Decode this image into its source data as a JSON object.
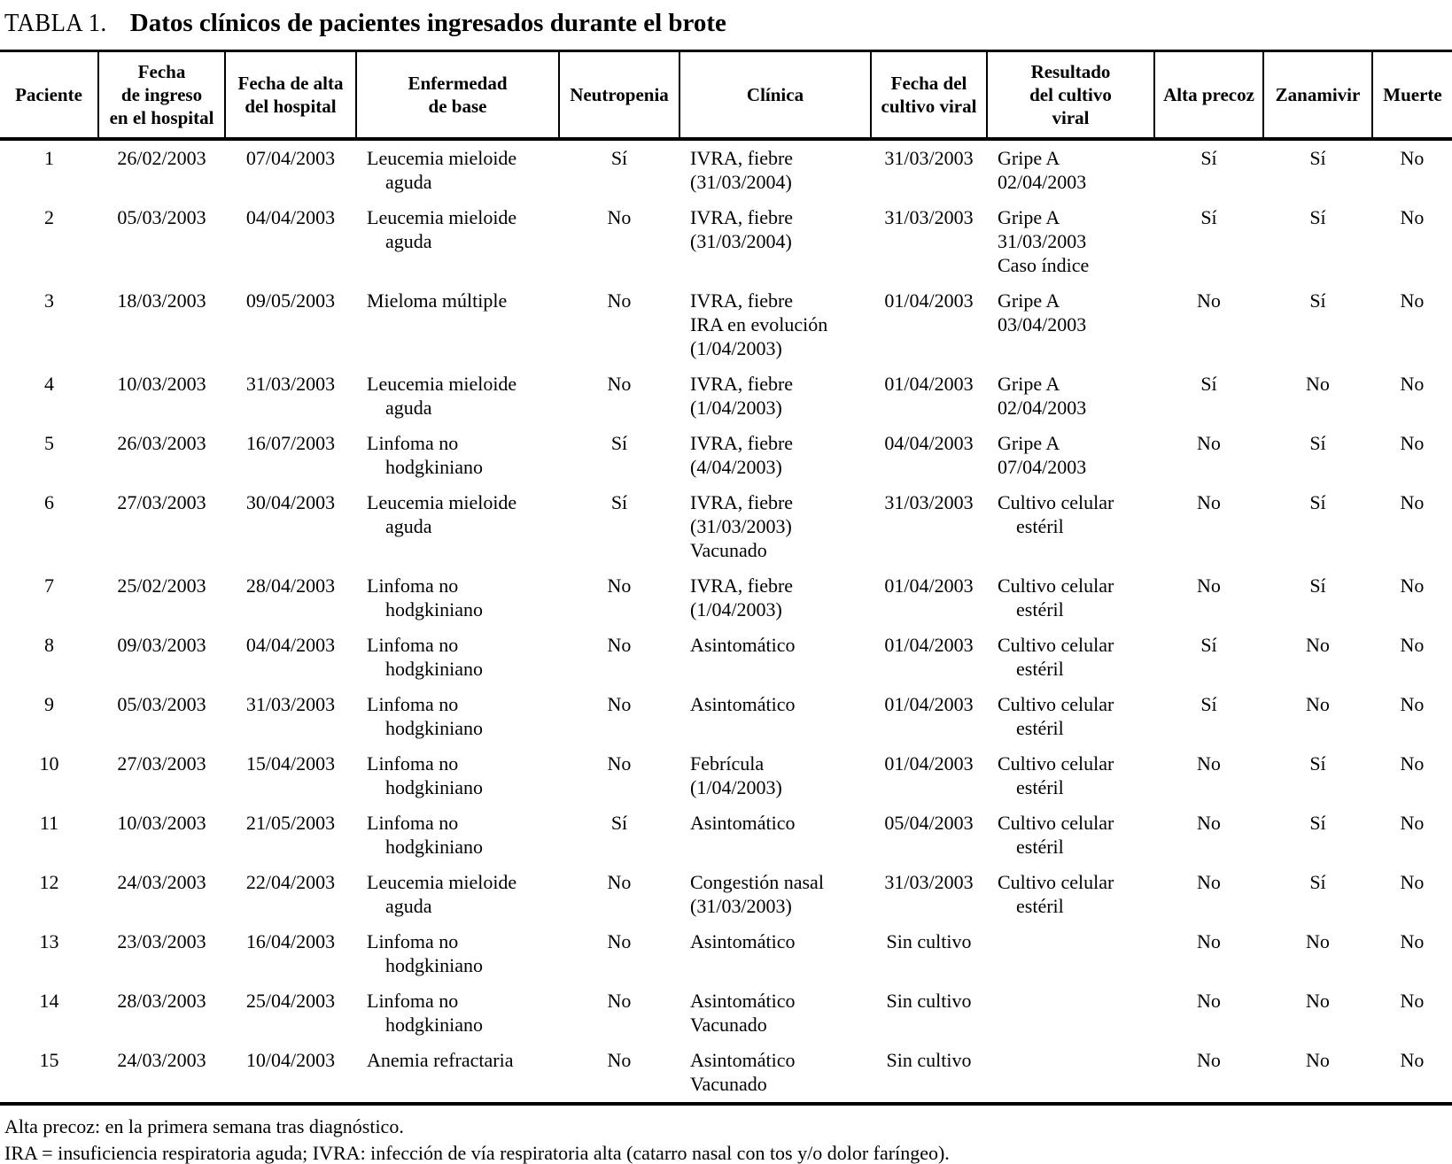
{
  "title": {
    "prefix": "TABLA 1.",
    "text": "Datos clínicos de pacientes ingresados durante el brote"
  },
  "table": {
    "columns": [
      {
        "key": "paciente",
        "label": [
          "Paciente"
        ]
      },
      {
        "key": "fecha-ingreso",
        "label": [
          "Fecha",
          "de ingreso",
          "en el hospital"
        ]
      },
      {
        "key": "fecha-alta",
        "label": [
          "Fecha de alta",
          "del hospital"
        ]
      },
      {
        "key": "enfermedad-base",
        "label": [
          "Enfermedad",
          "de base"
        ]
      },
      {
        "key": "neutropenia",
        "label": [
          "Neutropenia"
        ]
      },
      {
        "key": "clinica",
        "label": [
          "Clínica"
        ]
      },
      {
        "key": "fecha-cultivo",
        "label": [
          "Fecha del",
          "cultivo viral"
        ]
      },
      {
        "key": "resultado-cultivo",
        "label": [
          "Resultado",
          "del cultivo",
          "viral"
        ]
      },
      {
        "key": "alta-precoz",
        "label": [
          "Alta precoz"
        ]
      },
      {
        "key": "zanamivir",
        "label": [
          "Zanamivir"
        ]
      },
      {
        "key": "muerte",
        "label": [
          "Muerte"
        ]
      }
    ],
    "rows": [
      [
        [
          "1"
        ],
        [
          "26/02/2003"
        ],
        [
          "07/04/2003"
        ],
        [
          "Leucemia mieloide",
          {
            "t": "aguda",
            "i": 1
          }
        ],
        [
          "Sí"
        ],
        [
          "IVRA, fiebre",
          "(31/03/2004)"
        ],
        [
          "31/03/2003"
        ],
        [
          "Gripe A",
          "02/04/2003"
        ],
        [
          "Sí"
        ],
        [
          "Sí"
        ],
        [
          "No"
        ]
      ],
      [
        [
          "2"
        ],
        [
          "05/03/2003"
        ],
        [
          "04/04/2003"
        ],
        [
          "Leucemia mieloide",
          {
            "t": "aguda",
            "i": 1
          }
        ],
        [
          "No"
        ],
        [
          "IVRA, fiebre",
          "(31/03/2004)"
        ],
        [
          "31/03/2003"
        ],
        [
          "Gripe A",
          "31/03/2003",
          "Caso índice"
        ],
        [
          "Sí"
        ],
        [
          "Sí"
        ],
        [
          "No"
        ]
      ],
      [
        [
          "3"
        ],
        [
          "18/03/2003"
        ],
        [
          "09/05/2003"
        ],
        [
          "Mieloma múltiple"
        ],
        [
          "No"
        ],
        [
          "IVRA, fiebre",
          "IRA en evolución",
          "(1/04/2003)"
        ],
        [
          "01/04/2003"
        ],
        [
          "Gripe A",
          "03/04/2003"
        ],
        [
          "No"
        ],
        [
          "Sí"
        ],
        [
          "No"
        ]
      ],
      [
        [
          "4"
        ],
        [
          "10/03/2003"
        ],
        [
          "31/03/2003"
        ],
        [
          "Leucemia mieloide",
          {
            "t": "aguda",
            "i": 1
          }
        ],
        [
          "No"
        ],
        [
          "IVRA, fiebre",
          "(1/04/2003)"
        ],
        [
          "01/04/2003"
        ],
        [
          "Gripe A",
          "02/04/2003"
        ],
        [
          "Sí"
        ],
        [
          "No"
        ],
        [
          "No"
        ]
      ],
      [
        [
          "5"
        ],
        [
          "26/03/2003"
        ],
        [
          "16/07/2003"
        ],
        [
          "Linfoma no",
          {
            "t": "hodgkiniano",
            "i": 1
          }
        ],
        [
          "Sí"
        ],
        [
          "IVRA, fiebre",
          "(4/04/2003)"
        ],
        [
          "04/04/2003"
        ],
        [
          "Gripe A",
          "07/04/2003"
        ],
        [
          "No"
        ],
        [
          "Sí"
        ],
        [
          "No"
        ]
      ],
      [
        [
          "6"
        ],
        [
          "27/03/2003"
        ],
        [
          "30/04/2003"
        ],
        [
          "Leucemia mieloide",
          {
            "t": "aguda",
            "i": 1
          }
        ],
        [
          "Sí"
        ],
        [
          "IVRA, fiebre",
          "(31/03/2003)",
          "Vacunado"
        ],
        [
          "31/03/2003"
        ],
        [
          "Cultivo celular",
          {
            "t": "estéril",
            "i": 1
          }
        ],
        [
          "No"
        ],
        [
          "Sí"
        ],
        [
          "No"
        ]
      ],
      [
        [
          "7"
        ],
        [
          "25/02/2003"
        ],
        [
          "28/04/2003"
        ],
        [
          "Linfoma no",
          {
            "t": "hodgkiniano",
            "i": 1
          }
        ],
        [
          "No"
        ],
        [
          "IVRA, fiebre",
          "(1/04/2003)"
        ],
        [
          "01/04/2003"
        ],
        [
          "Cultivo celular",
          {
            "t": "estéril",
            "i": 1
          }
        ],
        [
          "No"
        ],
        [
          "Sí"
        ],
        [
          "No"
        ]
      ],
      [
        [
          "8"
        ],
        [
          "09/03/2003"
        ],
        [
          "04/04/2003"
        ],
        [
          "Linfoma no",
          {
            "t": "hodgkiniano",
            "i": 1
          }
        ],
        [
          "No"
        ],
        [
          "Asintomático"
        ],
        [
          "01/04/2003"
        ],
        [
          "Cultivo celular",
          {
            "t": "estéril",
            "i": 1
          }
        ],
        [
          "Sí"
        ],
        [
          "No"
        ],
        [
          "No"
        ]
      ],
      [
        [
          "9"
        ],
        [
          "05/03/2003"
        ],
        [
          "31/03/2003"
        ],
        [
          "Linfoma no",
          {
            "t": "hodgkiniano",
            "i": 1
          }
        ],
        [
          "No"
        ],
        [
          "Asintomático"
        ],
        [
          "01/04/2003"
        ],
        [
          "Cultivo celular",
          {
            "t": "estéril",
            "i": 1
          }
        ],
        [
          "Sí"
        ],
        [
          "No"
        ],
        [
          "No"
        ]
      ],
      [
        [
          "10"
        ],
        [
          "27/03/2003"
        ],
        [
          "15/04/2003"
        ],
        [
          "Linfoma no",
          {
            "t": "hodgkiniano",
            "i": 1
          }
        ],
        [
          "No"
        ],
        [
          "Febrícula",
          "(1/04/2003)"
        ],
        [
          "01/04/2003"
        ],
        [
          "Cultivo celular",
          {
            "t": "estéril",
            "i": 1
          }
        ],
        [
          "No"
        ],
        [
          "Sí"
        ],
        [
          "No"
        ]
      ],
      [
        [
          "11"
        ],
        [
          "10/03/2003"
        ],
        [
          "21/05/2003"
        ],
        [
          "Linfoma no",
          {
            "t": "hodgkiniano",
            "i": 1
          }
        ],
        [
          "Sí"
        ],
        [
          "Asintomático"
        ],
        [
          "05/04/2003"
        ],
        [
          "Cultivo celular",
          {
            "t": "estéril",
            "i": 1
          }
        ],
        [
          "No"
        ],
        [
          "Sí"
        ],
        [
          "No"
        ]
      ],
      [
        [
          "12"
        ],
        [
          "24/03/2003"
        ],
        [
          "22/04/2003"
        ],
        [
          "Leucemia mieloide",
          {
            "t": "aguda",
            "i": 1
          }
        ],
        [
          "No"
        ],
        [
          "Congestión nasal",
          "(31/03/2003)"
        ],
        [
          "31/03/2003"
        ],
        [
          "Cultivo celular",
          {
            "t": "estéril",
            "i": 1
          }
        ],
        [
          "No"
        ],
        [
          "Sí"
        ],
        [
          "No"
        ]
      ],
      [
        [
          "13"
        ],
        [
          "23/03/2003"
        ],
        [
          "16/04/2003"
        ],
        [
          "Linfoma no",
          {
            "t": "hodgkiniano",
            "i": 1
          }
        ],
        [
          "No"
        ],
        [
          "Asintomático"
        ],
        [
          "Sin cultivo"
        ],
        [],
        [
          "No"
        ],
        [
          "No"
        ],
        [
          "No"
        ]
      ],
      [
        [
          "14"
        ],
        [
          "28/03/2003"
        ],
        [
          "25/04/2003"
        ],
        [
          "Linfoma no",
          {
            "t": "hodgkiniano",
            "i": 1
          }
        ],
        [
          "No"
        ],
        [
          "Asintomático",
          "Vacunado"
        ],
        [
          "Sin cultivo"
        ],
        [],
        [
          "No"
        ],
        [
          "No"
        ],
        [
          "No"
        ]
      ],
      [
        [
          "15"
        ],
        [
          "24/03/2003"
        ],
        [
          "10/04/2003"
        ],
        [
          "Anemia refractaria"
        ],
        [
          "No"
        ],
        [
          "Asintomático",
          "Vacunado"
        ],
        [
          "Sin cultivo"
        ],
        [],
        [
          "No"
        ],
        [
          "No"
        ],
        [
          "No"
        ]
      ]
    ]
  },
  "footnotes": [
    "Alta precoz: en la primera semana tras diagnóstico.",
    "IRA = insuficiencia respiratoria aguda; IVRA: infección de vía respiratoria alta (catarro nasal con tos y/o dolor faríngeo)."
  ]
}
